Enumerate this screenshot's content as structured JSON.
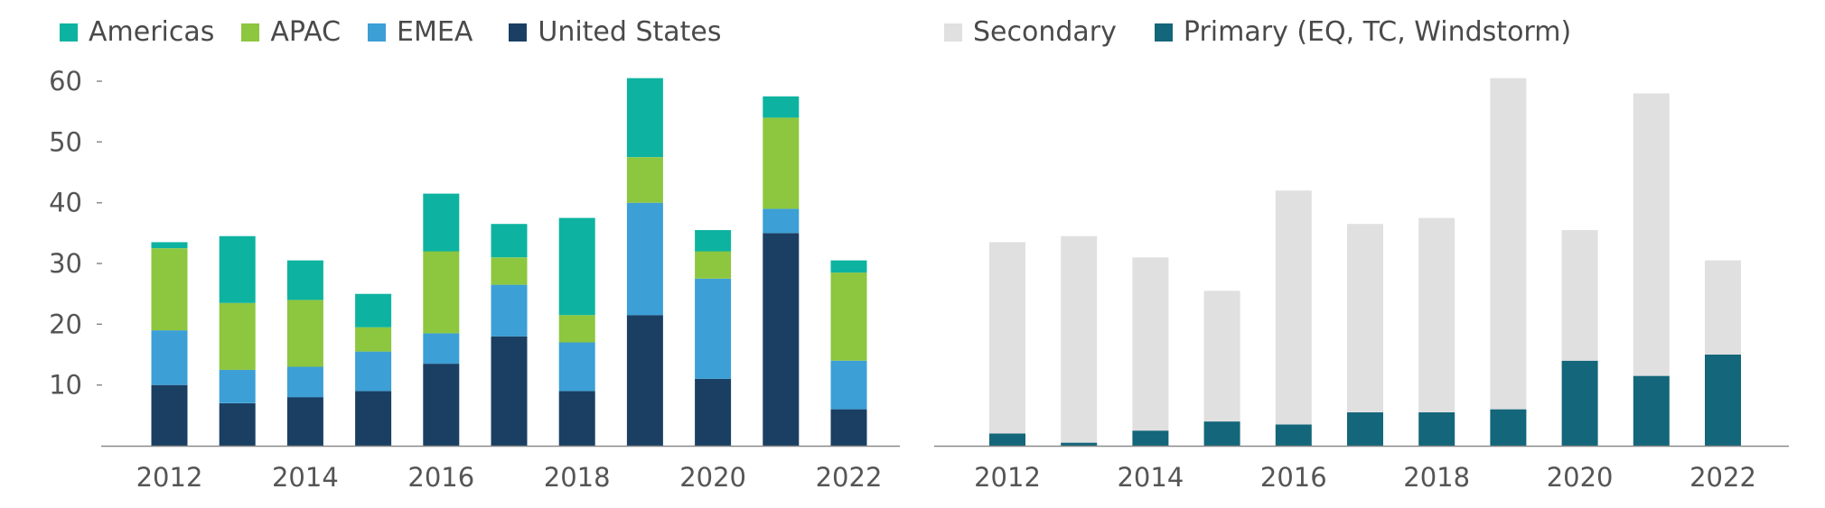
{
  "chart_data": [
    {
      "type": "bar",
      "stacked": true,
      "categories": [
        "2012",
        "2013",
        "2014",
        "2015",
        "2016",
        "2017",
        "2018",
        "2019",
        "2020",
        "2021",
        "2022"
      ],
      "xtick_labels": [
        "2012",
        "2014",
        "2016",
        "2018",
        "2020",
        "2022"
      ],
      "ylim": [
        0,
        60
      ],
      "yticks": [
        10,
        20,
        30,
        40,
        50,
        60
      ],
      "legend_position": "top-left",
      "grid": false,
      "series": [
        {
          "name": "United States",
          "color": "#1a3f63",
          "values": [
            10,
            7,
            8,
            9,
            13.5,
            18,
            9,
            21.5,
            11,
            35,
            6
          ]
        },
        {
          "name": "EMEA",
          "color": "#3c9fd6",
          "values": [
            9,
            5.5,
            5,
            6.5,
            5,
            8.5,
            8,
            18.5,
            16.5,
            4,
            8
          ]
        },
        {
          "name": "APAC",
          "color": "#8dc63f",
          "values": [
            13.5,
            11,
            11,
            4,
            13.5,
            4.5,
            4.5,
            7.5,
            4.5,
            15,
            14.5
          ]
        },
        {
          "name": "Americas",
          "color": "#0db3a0",
          "values": [
            1,
            11,
            6.5,
            5.5,
            9.5,
            5.5,
            16,
            13,
            3.5,
            3.5,
            2
          ]
        }
      ],
      "legend_order": [
        "Americas",
        "APAC",
        "EMEA",
        "United States"
      ]
    },
    {
      "type": "bar",
      "stacked": true,
      "categories": [
        "2012",
        "2013",
        "2014",
        "2015",
        "2016",
        "2017",
        "2018",
        "2019",
        "2020",
        "2021",
        "2022"
      ],
      "xtick_labels": [
        "2012",
        "2014",
        "2016",
        "2018",
        "2020",
        "2022"
      ],
      "ylim": [
        0,
        60
      ],
      "legend_position": "top-left",
      "grid": false,
      "series": [
        {
          "name": "Primary (EQ, TC, Windstorm)",
          "color": "#14667a",
          "values": [
            2,
            0.5,
            2.5,
            4,
            3.5,
            5.5,
            5.5,
            6,
            14,
            11.5,
            15
          ]
        },
        {
          "name": "Secondary",
          "color": "#e0e0e0",
          "values": [
            31.5,
            34,
            28.5,
            21.5,
            38.5,
            31,
            32,
            54.5,
            21.5,
            46.5,
            15.5
          ]
        }
      ],
      "legend_order": [
        "Secondary",
        "Primary (EQ, TC, Windstorm)"
      ]
    }
  ]
}
